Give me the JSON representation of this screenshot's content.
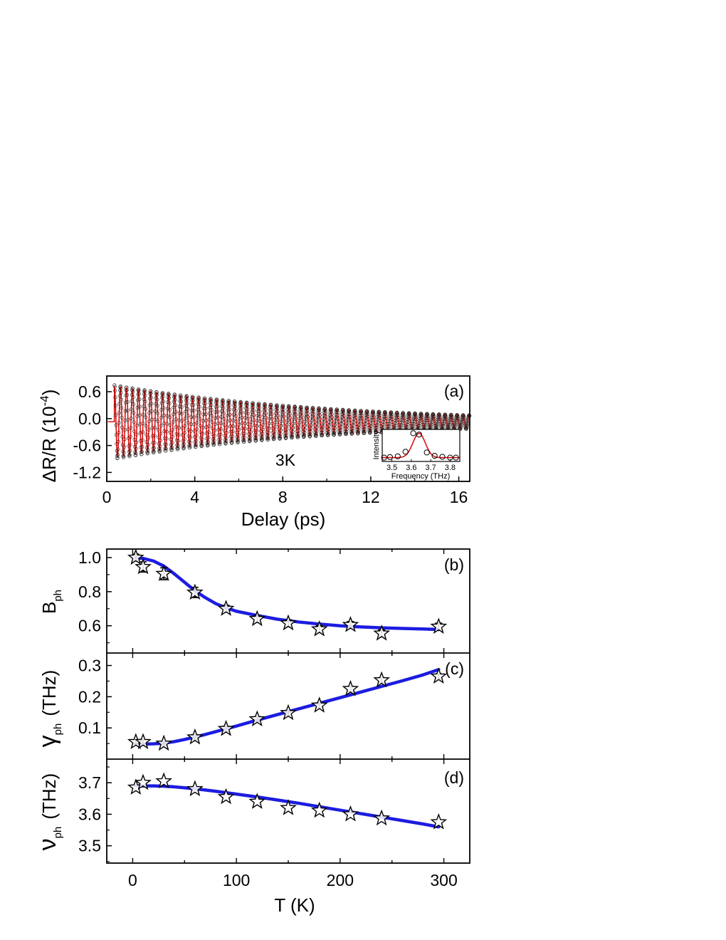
{
  "chart_data": [
    {
      "id": "a",
      "type": "line",
      "panel_label": "(a)",
      "annotation": "3K",
      "xlabel": "Delay  (ps)",
      "ylabel": "ΔR/R (10",
      "ylabel_exponent": "-4",
      "ylabel_close": ")",
      "xlim": [
        0,
        16.5
      ],
      "ylim": [
        -1.4,
        0.95
      ],
      "xticks": [
        0,
        4,
        8,
        12,
        16
      ],
      "yticks": [
        -1.2,
        -0.6,
        0.0,
        0.6
      ],
      "ytick_labels": [
        "-1.2",
        "-0.6",
        "0.0",
        "0.6"
      ],
      "signal": {
        "data_style": "open circles (black)",
        "fit_style": "red line",
        "offset": -0.07,
        "amplitude": 0.8,
        "frequency_thz": 3.66,
        "damping_per_ps": 0.105,
        "start_ps": 0.35,
        "end_ps": 16.5
      },
      "inset": {
        "type": "scatter",
        "xlabel": "Frequency (THz)",
        "ylabel": "Intensity",
        "xlim": [
          3.45,
          3.85
        ],
        "ylim": [
          -0.1,
          1.15
        ],
        "xticks": [
          3.5,
          3.6,
          3.7,
          3.8
        ],
        "xtick_labels": [
          "3.5",
          "3.6",
          "3.7",
          "3.8"
        ],
        "points": {
          "x": [
            3.46,
            3.49,
            3.53,
            3.57,
            3.61,
            3.64,
            3.68,
            3.72,
            3.76,
            3.8,
            3.83
          ],
          "y": [
            0.05,
            0.07,
            0.1,
            0.28,
            1.0,
            0.95,
            0.25,
            0.12,
            0.08,
            0.05,
            0.05
          ]
        },
        "fit": {
          "center": 3.64,
          "width": 0.032,
          "amplitude": 0.95,
          "baseline": 0.05
        }
      }
    },
    {
      "id": "b",
      "type": "scatter",
      "panel_label": "(b)",
      "ylabel": "B",
      "ylabel_sub": "ph",
      "xlim": [
        -25,
        325
      ],
      "ylim": [
        0.44,
        1.05
      ],
      "yticks": [
        0.6,
        0.8,
        1.0
      ],
      "ytick_labels": [
        "0.6",
        "0.8",
        "1.0"
      ],
      "x": [
        3,
        10,
        30,
        60,
        90,
        120,
        150,
        180,
        210,
        240,
        295
      ],
      "y": [
        1.0,
        0.945,
        0.905,
        0.795,
        0.7,
        0.64,
        0.615,
        0.58,
        0.605,
        0.555,
        0.595
      ],
      "yerr": [
        0.02,
        0.03,
        0.035,
        0.03,
        0.02,
        0.02,
        0.02,
        0.02,
        0.02,
        0.02,
        0.02
      ],
      "fit": {
        "x": [
          3,
          10,
          20,
          30,
          40,
          50,
          60,
          70,
          80,
          90,
          100,
          120,
          140,
          160,
          180,
          200,
          220,
          240,
          260,
          280,
          295
        ],
        "y": [
          0.998,
          0.995,
          0.98,
          0.95,
          0.905,
          0.855,
          0.805,
          0.765,
          0.73,
          0.705,
          0.685,
          0.66,
          0.638,
          0.622,
          0.61,
          0.6,
          0.593,
          0.588,
          0.584,
          0.581,
          0.578
        ]
      }
    },
    {
      "id": "c",
      "type": "scatter",
      "panel_label": "(c)",
      "ylabel": "γ",
      "ylabel_sub": "ph",
      "ylabel_unit": "(THz)",
      "xlim": [
        -25,
        325
      ],
      "ylim": [
        0.0,
        0.34
      ],
      "yticks": [
        0.1,
        0.2,
        0.3
      ],
      "ytick_labels": [
        "0.1",
        "0.2",
        "0.3"
      ],
      "x": [
        3,
        10,
        30,
        60,
        90,
        120,
        150,
        180,
        210,
        240,
        295
      ],
      "y": [
        0.055,
        0.055,
        0.05,
        0.07,
        0.097,
        0.128,
        0.148,
        0.172,
        0.225,
        0.253,
        0.265
      ],
      "yerr": [
        0.006,
        0.006,
        0.006,
        0.008,
        0.008,
        0.008,
        0.008,
        0.008,
        0.008,
        0.008,
        0.008
      ],
      "fit": {
        "x": [
          3,
          10,
          20,
          30,
          40,
          50,
          60,
          70,
          80,
          90,
          100,
          120,
          140,
          160,
          180,
          200,
          220,
          240,
          260,
          280,
          295
        ],
        "y": [
          0.048,
          0.048,
          0.049,
          0.051,
          0.056,
          0.063,
          0.071,
          0.079,
          0.088,
          0.097,
          0.106,
          0.125,
          0.143,
          0.161,
          0.179,
          0.197,
          0.215,
          0.233,
          0.251,
          0.27,
          0.287
        ]
      }
    },
    {
      "id": "d",
      "type": "scatter",
      "panel_label": "(d)",
      "ylabel": "ν",
      "ylabel_sub": "ph",
      "ylabel_unit": "(THz)",
      "xlabel": "T  (K)",
      "xlim": [
        -25,
        325
      ],
      "ylim": [
        3.445,
        3.775
      ],
      "xticks": [
        0,
        100,
        200,
        300
      ],
      "yticks": [
        3.5,
        3.6,
        3.7
      ],
      "ytick_labels": [
        "3.5",
        "3.6",
        "3.7"
      ],
      "x": [
        3,
        10,
        30,
        60,
        90,
        120,
        150,
        180,
        210,
        240,
        295
      ],
      "y": [
        3.685,
        3.7,
        3.705,
        3.68,
        3.655,
        3.64,
        3.62,
        3.612,
        3.6,
        3.587,
        3.575
      ],
      "fit": {
        "x": [
          3,
          10,
          20,
          30,
          40,
          50,
          60,
          80,
          100,
          120,
          140,
          160,
          180,
          200,
          220,
          240,
          260,
          280,
          295
        ],
        "y": [
          3.69,
          3.69,
          3.69,
          3.689,
          3.687,
          3.684,
          3.681,
          3.673,
          3.664,
          3.655,
          3.645,
          3.635,
          3.624,
          3.613,
          3.602,
          3.591,
          3.58,
          3.569,
          3.56
        ]
      }
    }
  ]
}
